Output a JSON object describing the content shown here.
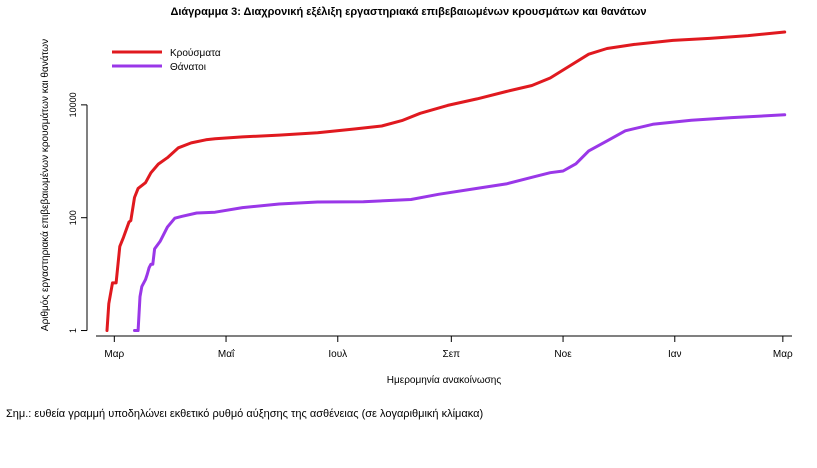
{
  "chart_data": {
    "type": "line",
    "title": "Διάγραμμα 3: Διαχρονική εξέλιξη εργαστηριακά επιβεβαιωμένων κρουσμάτων και θανάτων",
    "xlabel": "Ημερομηνία ανακοίνωσης",
    "ylabel": "Αριθμός εργαστηριακά επιβεβαιωμένων κρουσμάτων και θανάτων",
    "y_scale": "log",
    "ylim": [
      0.8,
      250000
    ],
    "y_ticks": [
      {
        "value": 1,
        "label": "1"
      },
      {
        "value": 100,
        "label": "100"
      },
      {
        "value": 10000,
        "label": "10000"
      }
    ],
    "xlim": [
      "2020-02-20",
      "2021-03-06"
    ],
    "x_ticks": [
      {
        "value": "2020-03-01",
        "label": "Μαρ"
      },
      {
        "value": "2020-05-01",
        "label": "Μαΐ"
      },
      {
        "value": "2020-07-01",
        "label": "Ιουλ"
      },
      {
        "value": "2020-09-01",
        "label": "Σεπ"
      },
      {
        "value": "2020-11-01",
        "label": "Νοε"
      },
      {
        "value": "2021-01-01",
        "label": "Ιαν"
      },
      {
        "value": "2021-03-01",
        "label": "Μαρ"
      }
    ],
    "grid": false,
    "legend_position": "top-left",
    "series": [
      {
        "name": "Κρούσματα",
        "color": "#e0191f",
        "points": [
          [
            "2020-02-26",
            1
          ],
          [
            "2020-02-27",
            3
          ],
          [
            "2020-02-29",
            7
          ],
          [
            "2020-03-02",
            7
          ],
          [
            "2020-03-04",
            31
          ],
          [
            "2020-03-06",
            45
          ],
          [
            "2020-03-09",
            84
          ],
          [
            "2020-03-10",
            89
          ],
          [
            "2020-03-12",
            228
          ],
          [
            "2020-03-14",
            331
          ],
          [
            "2020-03-18",
            418
          ],
          [
            "2020-03-21",
            624
          ],
          [
            "2020-03-25",
            892
          ],
          [
            "2020-03-30",
            1156
          ],
          [
            "2020-04-05",
            1735
          ],
          [
            "2020-04-12",
            2114
          ],
          [
            "2020-04-20",
            2401
          ],
          [
            "2020-04-25",
            2517
          ],
          [
            "2020-05-10",
            2710
          ],
          [
            "2020-05-30",
            2915
          ],
          [
            "2020-06-20",
            3203
          ],
          [
            "2020-07-10",
            3732
          ],
          [
            "2020-07-25",
            4227
          ],
          [
            "2020-08-05",
            5270
          ],
          [
            "2020-08-15",
            7075
          ],
          [
            "2020-08-30",
            9800
          ],
          [
            "2020-09-15",
            12734
          ],
          [
            "2020-10-01",
            17228
          ],
          [
            "2020-10-15",
            22078
          ],
          [
            "2020-10-25",
            29992
          ],
          [
            "2020-11-05",
            49807
          ],
          [
            "2020-11-15",
            79166
          ],
          [
            "2020-11-25",
            100000
          ],
          [
            "2020-12-10",
            118000
          ],
          [
            "2020-12-31",
            138850
          ],
          [
            "2021-01-20",
            151000
          ],
          [
            "2021-02-10",
            169000
          ],
          [
            "2021-03-02",
            196000
          ]
        ]
      },
      {
        "name": "Θάνατοι",
        "color": "#9a37e8",
        "points": [
          [
            "2020-03-12",
            1
          ],
          [
            "2020-03-14",
            1
          ],
          [
            "2020-03-15",
            4
          ],
          [
            "2020-03-16",
            6
          ],
          [
            "2020-03-18",
            8
          ],
          [
            "2020-03-19",
            10
          ],
          [
            "2020-03-20",
            13
          ],
          [
            "2020-03-21",
            15
          ],
          [
            "2020-03-22",
            15
          ],
          [
            "2020-03-23",
            28
          ],
          [
            "2020-03-26",
            38
          ],
          [
            "2020-03-30",
            68
          ],
          [
            "2020-04-03",
            98
          ],
          [
            "2020-04-07",
            106
          ],
          [
            "2020-04-15",
            121
          ],
          [
            "2020-04-25",
            125
          ],
          [
            "2020-05-10",
            151
          ],
          [
            "2020-05-30",
            175
          ],
          [
            "2020-06-20",
            190
          ],
          [
            "2020-07-15",
            192
          ],
          [
            "2020-08-10",
            210
          ],
          [
            "2020-08-25",
            260
          ],
          [
            "2020-09-15",
            331
          ],
          [
            "2020-10-01",
            397
          ],
          [
            "2020-10-15",
            520
          ],
          [
            "2020-10-25",
            628
          ],
          [
            "2020-11-01",
            673
          ],
          [
            "2020-11-08",
            902
          ],
          [
            "2020-11-15",
            1527
          ],
          [
            "2020-11-25",
            2300
          ],
          [
            "2020-12-05",
            3469
          ],
          [
            "2020-12-20",
            4526
          ],
          [
            "2021-01-10",
            5329
          ],
          [
            "2021-02-01",
            5950
          ],
          [
            "2021-03-02",
            6675
          ]
        ]
      }
    ],
    "footnote": "Σημ.: ευθεία γραμμή υποδηλώνει εκθετικό ρυθμό αύξησης της ασθένειας (σε λογαριθμική κλίμακα)"
  }
}
